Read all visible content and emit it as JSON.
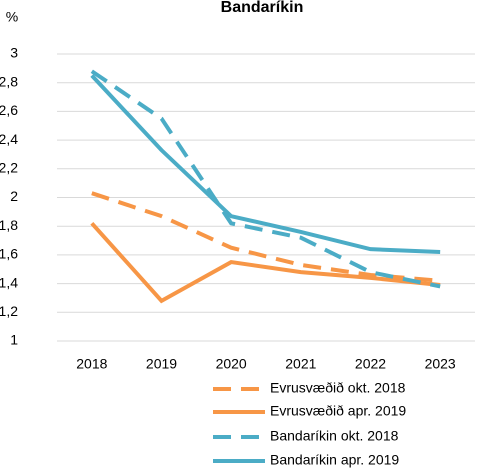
{
  "chart_data": {
    "type": "line",
    "title": "Bandaríkin",
    "y_label": "%",
    "categories": [
      "2018",
      "2019",
      "2020",
      "2021",
      "2022",
      "2023"
    ],
    "series": [
      {
        "name": "Evrusvæðið okt. 2018",
        "color": "#f79646",
        "dashed": true,
        "values": [
          2.03,
          1.87,
          1.65,
          1.53,
          1.46,
          1.42
        ]
      },
      {
        "name": "Evrusvæðið apr. 2019",
        "color": "#f79646",
        "dashed": false,
        "values": [
          1.82,
          1.28,
          1.55,
          1.48,
          1.44,
          1.39
        ]
      },
      {
        "name": "Bandaríkin okt. 2018",
        "color": "#4bacc6",
        "dashed": true,
        "values": [
          2.88,
          2.55,
          1.82,
          1.72,
          1.48,
          1.38
        ]
      },
      {
        "name": "Bandaríkin apr. 2019",
        "color": "#4bacc6",
        "dashed": false,
        "values": [
          2.85,
          2.33,
          1.87,
          1.76,
          1.64,
          1.62
        ]
      }
    ],
    "ylim": [
      1,
      3
    ],
    "yticks": [
      1,
      {
        "value": 1.2,
        "label": "1,2"
      },
      {
        "value": 1.4,
        "label": "1,4"
      },
      {
        "value": 1.6,
        "label": "1,6"
      },
      {
        "value": 1.8,
        "label": "1,8"
      },
      2,
      {
        "value": 2.2,
        "label": "2,2"
      },
      {
        "value": 2.4,
        "label": "2,4"
      },
      {
        "value": 2.6,
        "label": "2,6"
      },
      {
        "value": 2.8,
        "label": "2,8"
      },
      3
    ],
    "grid": true
  }
}
